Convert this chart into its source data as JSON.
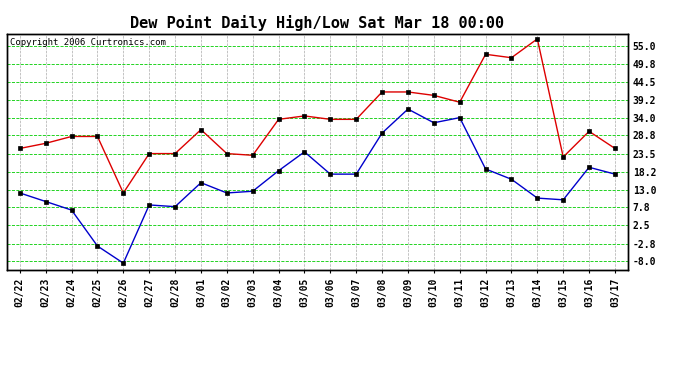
{
  "title": "Dew Point Daily High/Low Sat Mar 18 00:00",
  "copyright": "Copyright 2006 Curtronics.com",
  "x_labels": [
    "02/22",
    "02/23",
    "02/24",
    "02/25",
    "02/26",
    "02/27",
    "02/28",
    "03/01",
    "03/02",
    "03/03",
    "03/04",
    "03/05",
    "03/06",
    "03/07",
    "03/08",
    "03/09",
    "03/10",
    "03/11",
    "03/12",
    "03/13",
    "03/14",
    "03/15",
    "03/16",
    "03/17"
  ],
  "high_values": [
    25.0,
    26.5,
    28.5,
    28.5,
    12.0,
    23.5,
    23.5,
    30.5,
    23.5,
    23.0,
    33.5,
    34.5,
    33.5,
    33.5,
    41.5,
    41.5,
    40.5,
    38.5,
    52.5,
    51.5,
    57.0,
    22.5,
    30.0,
    25.0
  ],
  "low_values": [
    12.0,
    9.5,
    7.0,
    -3.5,
    -8.5,
    8.5,
    8.0,
    15.0,
    12.0,
    12.5,
    18.5,
    24.0,
    17.5,
    17.5,
    29.5,
    36.5,
    32.5,
    34.0,
    19.0,
    16.0,
    10.5,
    10.0,
    19.5,
    17.5
  ],
  "high_color": "#dd0000",
  "low_color": "#0000cc",
  "marker": "s",
  "marker_size": 3,
  "bg_color": "#ffffff",
  "plot_bg_color": "#ffffff",
  "grid_color": "#00cc00",
  "yticks": [
    55.0,
    49.8,
    44.5,
    39.2,
    34.0,
    28.8,
    23.5,
    18.2,
    13.0,
    7.8,
    2.5,
    -2.8,
    -8.0
  ],
  "ylim": [
    -10.5,
    58.5
  ],
  "title_fontsize": 11,
  "axis_fontsize": 7,
  "copyright_fontsize": 6.5
}
